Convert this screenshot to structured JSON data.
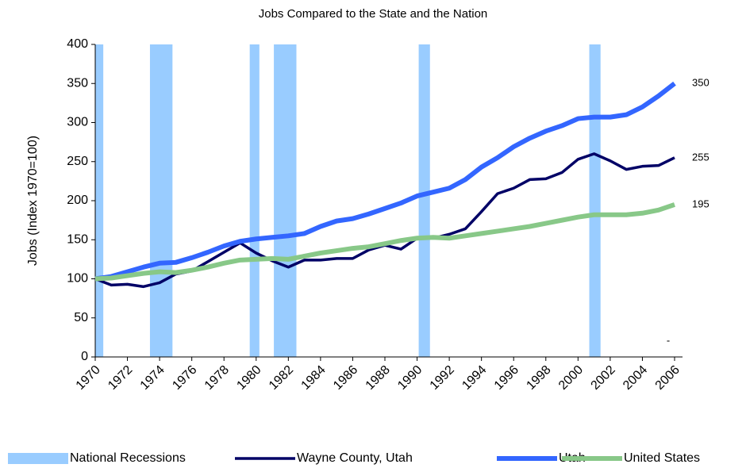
{
  "chart_data": {
    "type": "line",
    "title": "Jobs Compared to the State and the Nation",
    "y_label": "Jobs (Index 1970=100)",
    "annotation": "-",
    "x": [
      1970,
      1971,
      1972,
      1973,
      1974,
      1975,
      1976,
      1977,
      1978,
      1979,
      1980,
      1981,
      1982,
      1983,
      1984,
      1985,
      1986,
      1987,
      1988,
      1989,
      1990,
      1991,
      1992,
      1993,
      1994,
      1995,
      1996,
      1997,
      1998,
      1999,
      2000,
      2001,
      2002,
      2003,
      2004,
      2005,
      2006
    ],
    "xlim": [
      1970,
      2006
    ],
    "xticks": [
      1970,
      1972,
      1974,
      1976,
      1978,
      1980,
      1982,
      1984,
      1986,
      1988,
      1990,
      1992,
      1994,
      1996,
      1998,
      2000,
      2002,
      2004,
      2006
    ],
    "ylim": [
      0,
      400
    ],
    "yticks": [
      0,
      50,
      100,
      150,
      200,
      250,
      300,
      350,
      400
    ],
    "recessions": {
      "name": "National Recessions",
      "color": "#99ccff",
      "ranges": [
        [
          1970,
          1970.5
        ],
        [
          1973.4,
          1974.8
        ],
        [
          1979.6,
          1980.2
        ],
        [
          1981.1,
          1982.5
        ],
        [
          1990.1,
          1990.8
        ],
        [
          2000.7,
          2001.4
        ]
      ]
    },
    "series": [
      {
        "name": "Wayne County, Utah",
        "color": "#000066",
        "width": 3.5,
        "values": [
          100,
          92,
          93,
          90,
          95,
          106,
          110,
          122,
          134,
          146,
          133,
          123,
          115,
          124,
          124,
          126,
          126,
          137,
          143,
          138,
          152,
          152,
          157,
          164,
          186,
          209,
          216,
          227,
          228,
          236,
          253,
          260,
          251,
          240,
          244,
          245,
          255
        ]
      },
      {
        "name": "Utah",
        "color": "#3366ff",
        "width": 6,
        "values": [
          100,
          103,
          109,
          115,
          120,
          121,
          127,
          134,
          142,
          148,
          151,
          153,
          155,
          158,
          167,
          174,
          177,
          183,
          190,
          197,
          206,
          211,
          216,
          227,
          243,
          255,
          269,
          280,
          289,
          296,
          305,
          307,
          307,
          310,
          320,
          334,
          350
        ]
      },
      {
        "name": "United States",
        "color": "#88c888",
        "width": 6,
        "values": [
          100,
          101,
          104,
          107,
          109,
          108,
          111,
          115,
          120,
          124,
          125,
          126,
          125,
          129,
          133,
          136,
          139,
          141,
          145,
          149,
          152,
          153,
          152,
          155,
          158,
          161,
          164,
          167,
          171,
          175,
          179,
          182,
          182,
          182,
          184,
          188,
          195
        ]
      }
    ]
  }
}
